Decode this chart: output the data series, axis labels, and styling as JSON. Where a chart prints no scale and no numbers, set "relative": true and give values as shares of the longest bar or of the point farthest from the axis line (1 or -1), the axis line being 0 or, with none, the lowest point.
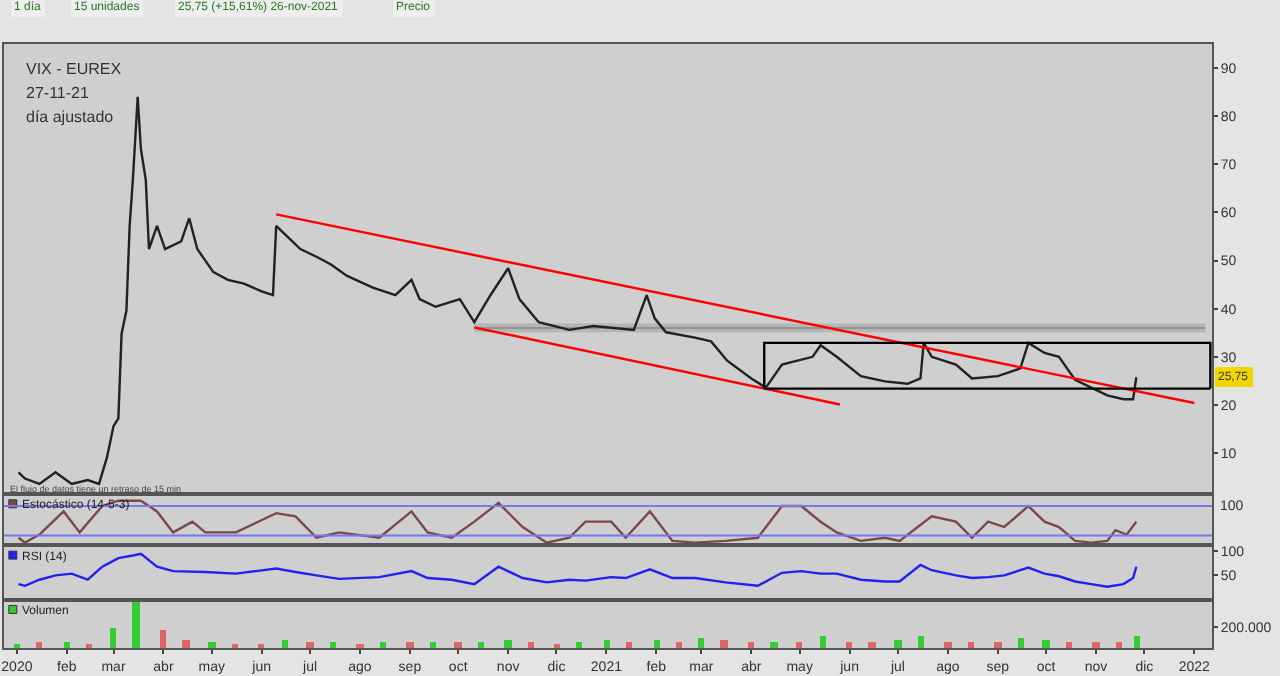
{
  "chart_data": [
    {
      "type": "line",
      "title": "VIX - EUREX",
      "subtitle": "27-11-21",
      "annotations": [
        "día ajustado",
        "El flujo de datos tiene un retraso de 15 min",
        "1 día",
        "15 unidades",
        "25,75 (+15,61%) 26-nov-2021",
        "Precio",
        {
          "text": "25,75",
          "y": 25.75
        }
      ],
      "xlim": [
        "2019-12-24",
        "2022-01-12"
      ],
      "ylim": [
        1.5,
        95
      ],
      "yticks": [
        10,
        20,
        30,
        40,
        50,
        60,
        70,
        80,
        90
      ],
      "tick_labels": "y",
      "grid": false,
      "legend": false,
      "marker": "none",
      "line_style": "solid",
      "series": [
        {
          "color": "#888888",
          "x": [
            "2020-10-11",
            "2022-01-08"
          ],
          "values": [
            36,
            36
          ],
          "lower": [
            35.1,
            35.1
          ],
          "upper": [
            36.9,
            36.9
          ]
        },
        {
          "color": "#222222",
          "x": [
            "2020-01-02",
            "2020-01-06",
            "2020-01-15",
            "2020-01-25",
            "2020-02-04",
            "2020-02-14",
            "2020-02-21",
            "2020-02-26",
            "2020-03-01",
            "2020-03-04",
            "2020-03-06",
            "2020-03-09",
            "2020-03-11",
            "2020-03-13",
            "2020-03-16",
            "2020-03-18",
            "2020-03-21",
            "2020-03-23",
            "2020-03-28",
            "2020-04-02",
            "2020-04-12",
            "2020-04-17",
            "2020-04-22",
            "2020-05-02",
            "2020-05-11",
            "2020-05-21",
            "2020-06-01",
            "2020-06-08",
            "2020-06-10",
            "2020-06-15",
            "2020-06-25",
            "2020-07-05",
            "2020-07-14",
            "2020-07-24",
            "2020-08-09",
            "2020-08-23",
            "2020-09-02",
            "2020-09-07",
            "2020-09-17",
            "2020-10-02",
            "2020-10-11",
            "2020-10-21",
            "2020-11-01",
            "2020-11-08",
            "2020-11-20",
            "2020-12-09",
            "2020-12-24",
            "2021-01-18",
            "2021-01-26",
            "2021-01-31",
            "2021-02-07",
            "2021-02-25",
            "2021-03-07",
            "2021-03-17",
            "2021-04-01",
            "2021-04-10",
            "2021-04-20",
            "2021-05-09",
            "2021-05-14",
            "2021-05-24",
            "2021-06-08",
            "2021-06-23",
            "2021-07-07",
            "2021-07-15",
            "2021-07-17",
            "2021-07-22",
            "2021-08-06",
            "2021-08-16",
            "2021-09-01",
            "2021-09-15",
            "2021-09-20",
            "2021-09-30",
            "2021-10-09",
            "2021-10-19",
            "2021-11-08",
            "2021-11-18",
            "2021-11-24",
            "2021-11-26"
          ],
          "values": [
            6.0,
            4.7,
            3.6,
            6.0,
            3.6,
            4.4,
            3.6,
            9.2,
            15.6,
            17.2,
            34.8,
            39.6,
            57.2,
            66.8,
            84,
            73.2,
            66.8,
            52.4,
            57.2,
            52.4,
            54,
            58.8,
            52.4,
            47.6,
            46,
            45.2,
            43.6,
            42.8,
            57.2,
            55.6,
            52.4,
            50.8,
            49.2,
            46.8,
            44.4,
            42.8,
            46,
            42,
            40.4,
            42,
            37.2,
            42.8,
            48.4,
            42,
            37.2,
            35.6,
            36.4,
            35.6,
            42.8,
            38,
            35.1,
            34,
            33.2,
            29.2,
            25.5,
            23.6,
            28.4,
            30,
            32.4,
            30,
            26,
            24.9,
            24.4,
            25.5,
            32.9,
            30,
            28.4,
            25.5,
            26,
            27.6,
            32.9,
            30.8,
            30,
            25.2,
            22,
            21.2,
            21.2,
            25.75
          ]
        },
        {
          "color": "#ff0000",
          "x": [
            "2020-06-10",
            "2022-01-01"
          ],
          "values": [
            59.6,
            20.4
          ]
        },
        {
          "color": "#ff0000",
          "x": [
            "2020-10-11",
            "2021-05-26"
          ],
          "values": [
            36.1,
            20.1
          ]
        },
        {
          "color": "#000000",
          "x": [
            "2021-04-09",
            "2021-04-09",
            "2022-01-11",
            "2022-01-11"
          ],
          "values": [
            23.4,
            32.9,
            32.9,
            23.4
          ]
        },
        {
          "color": "#000000",
          "x": [
            "2021-04-09",
            "2022-01-11"
          ],
          "values": [
            23.4,
            23.4
          ]
        }
      ]
    },
    {
      "type": "line",
      "relative": true,
      "annotations": [
        "100"
      ],
      "xlim": [
        "2019-12-24",
        "2022-01-12"
      ],
      "tick_labels": false,
      "grid": false,
      "legend": "top left",
      "marker": "none",
      "line_style": "solid",
      "ref_lines": [
        {
          "axis": "y",
          "value": 0.88,
          "color": "#7777ee"
        },
        {
          "axis": "y",
          "value": 0.22,
          "color": "#7777ee"
        }
      ],
      "series": [
        {
          "name": "Estocástico (14-5-3)",
          "color": "#7a4a4a",
          "x": [
            "2020-01-02",
            "2020-01-06",
            "2020-01-15",
            "2020-01-30",
            "2020-02-09",
            "2020-02-23",
            "2020-03-04",
            "2020-03-18",
            "2020-03-28",
            "2020-04-07",
            "2020-04-19",
            "2020-04-27",
            "2020-05-16",
            "2020-06-10",
            "2020-06-22",
            "2020-07-05",
            "2020-07-19",
            "2020-08-13",
            "2020-09-02",
            "2020-09-12",
            "2020-09-27",
            "2020-10-11",
            "2020-10-26",
            "2020-11-10",
            "2020-11-25",
            "2020-12-09",
            "2020-12-19",
            "2021-01-04",
            "2021-01-13",
            "2021-01-28",
            "2021-02-11",
            "2021-02-25",
            "2021-03-16",
            "2021-04-05",
            "2021-04-20",
            "2021-05-02",
            "2021-05-14",
            "2021-05-24",
            "2021-06-08",
            "2021-06-23",
            "2021-07-02",
            "2021-07-22",
            "2021-08-06",
            "2021-08-16",
            "2021-08-26",
            "2021-09-05",
            "2021-09-20",
            "2021-09-30",
            "2021-10-09",
            "2021-10-19",
            "2021-10-29",
            "2021-11-08",
            "2021-11-13",
            "2021-11-20",
            "2021-11-26"
          ],
          "values": [
            0.17,
            0.06,
            0.24,
            0.76,
            0.29,
            0.88,
            1,
            1,
            0.76,
            0.29,
            0.53,
            0.29,
            0.29,
            0.72,
            0.65,
            0.17,
            0.29,
            0.17,
            0.76,
            0.29,
            0.17,
            0.53,
            0.95,
            0.41,
            0.06,
            0.17,
            0.53,
            0.53,
            0.17,
            0.76,
            0.1,
            0.06,
            0.1,
            0.17,
            0.88,
            0.88,
            0.53,
            0.29,
            0.1,
            0.17,
            0.1,
            0.65,
            0.53,
            0.17,
            0.53,
            0.41,
            0.88,
            0.53,
            0.41,
            0.1,
            0.06,
            0.1,
            0.34,
            0.24,
            0.53
          ]
        }
      ]
    },
    {
      "type": "line",
      "xlim": [
        "2019-12-24",
        "2022-01-12"
      ],
      "ylim": [
        0,
        112
      ],
      "yticks": [
        50,
        100
      ],
      "tick_labels": "y",
      "grid": false,
      "legend": "top left",
      "marker": "none",
      "line_style": "solid",
      "series": [
        {
          "name": "RSI (14)",
          "color": "#2222ee",
          "x": [
            "2020-01-02",
            "2020-01-06",
            "2020-01-15",
            "2020-01-25",
            "2020-02-04",
            "2020-02-14",
            "2020-02-23",
            "2020-03-04",
            "2020-03-13",
            "2020-03-18",
            "2020-03-28",
            "2020-04-07",
            "2020-04-27",
            "2020-05-16",
            "2020-06-10",
            "2020-06-22",
            "2020-07-05",
            "2020-07-19",
            "2020-08-13",
            "2020-09-02",
            "2020-09-12",
            "2020-09-27",
            "2020-10-11",
            "2020-10-26",
            "2020-11-10",
            "2020-11-25",
            "2020-12-09",
            "2020-12-19",
            "2021-01-04",
            "2021-01-13",
            "2021-01-28",
            "2021-02-11",
            "2021-02-25",
            "2021-03-16",
            "2021-04-05",
            "2021-04-20",
            "2021-05-02",
            "2021-05-14",
            "2021-05-24",
            "2021-06-08",
            "2021-06-23",
            "2021-07-02",
            "2021-07-15",
            "2021-07-22",
            "2021-08-06",
            "2021-08-16",
            "2021-08-26",
            "2021-09-05",
            "2021-09-20",
            "2021-09-30",
            "2021-10-09",
            "2021-10-19",
            "2021-10-29",
            "2021-11-08",
            "2021-11-18",
            "2021-11-24",
            "2021-11-26"
          ],
          "values": [
            32.1,
            28.6,
            41.1,
            50,
            53.6,
            41.1,
            67.9,
            85.7,
            91.1,
            94.6,
            67.9,
            58.9,
            57.1,
            53.6,
            64.3,
            57.1,
            50,
            42.9,
            46.4,
            58.9,
            44.6,
            41.1,
            32.1,
            67.9,
            44.6,
            35.7,
            41.1,
            39.3,
            46.4,
            44.6,
            62.5,
            44.6,
            44.6,
            35.7,
            28.6,
            55.4,
            58.9,
            53.6,
            53.6,
            41.1,
            37.5,
            37.5,
            71.4,
            60.7,
            50,
            44.6,
            46.4,
            50,
            66.1,
            53.6,
            48.2,
            37.5,
            32.1,
            26.8,
            32.1,
            44.6,
            67.9
          ]
        }
      ]
    },
    {
      "type": "bar",
      "xlim": [
        "2019-12-24",
        "2022-01-12"
      ],
      "ylim": [
        0,
        470000
      ],
      "yticks": [
        {
          "value": 200000,
          "label": "200.000"
        }
      ],
      "xticks": [
        {
          "value": "2020-01-01",
          "label": "2020"
        },
        {
          "value": "2020-02-01",
          "label": "feb"
        },
        {
          "value": "2020-03-01",
          "label": "mar"
        },
        {
          "value": "2020-04-01",
          "label": "abr"
        },
        {
          "value": "2020-05-01",
          "label": "may"
        },
        {
          "value": "2020-06-01",
          "label": "jun"
        },
        {
          "value": "2020-07-01",
          "label": "jul"
        },
        {
          "value": "2020-08-01",
          "label": "ago"
        },
        {
          "value": "2020-09-01",
          "label": "sep"
        },
        {
          "value": "2020-10-01",
          "label": "oct"
        },
        {
          "value": "2020-11-01",
          "label": "nov"
        },
        {
          "value": "2020-12-01",
          "label": "dic"
        },
        {
          "value": "2021-01-01",
          "label": "2021"
        },
        {
          "value": "2021-02-01",
          "label": "feb"
        },
        {
          "value": "2021-03-01",
          "label": "mar"
        },
        {
          "value": "2021-04-01",
          "label": "abr"
        },
        {
          "value": "2021-05-01",
          "label": "may"
        },
        {
          "value": "2021-06-01",
          "label": "jun"
        },
        {
          "value": "2021-07-01",
          "label": "jul"
        },
        {
          "value": "2021-08-01",
          "label": "ago"
        },
        {
          "value": "2021-09-01",
          "label": "sep"
        },
        {
          "value": "2021-10-01",
          "label": "oct"
        },
        {
          "value": "2021-11-01",
          "label": "nov"
        },
        {
          "value": "2021-12-01",
          "label": "dic"
        },
        {
          "value": "2022-01-01",
          "label": "2022"
        }
      ],
      "grid": false,
      "legend": "top left",
      "series": [
        {
          "name": "Volumen",
          "x": [
            "2020-01-01",
            "2020-01-15",
            "2020-02-01",
            "2020-02-15",
            "2020-03-01",
            "2020-03-15",
            "2020-04-01",
            "2020-04-15",
            "2020-05-01",
            "2020-05-15",
            "2020-06-01",
            "2020-06-15",
            "2020-07-01",
            "2020-07-15",
            "2020-08-01",
            "2020-08-15",
            "2020-09-01",
            "2020-09-15",
            "2020-10-01",
            "2020-10-15",
            "2020-11-01",
            "2020-11-15",
            "2020-12-01",
            "2020-12-15",
            "2021-01-01",
            "2021-01-15",
            "2021-02-01",
            "2021-02-15",
            "2021-03-01",
            "2021-03-15",
            "2021-04-01",
            "2021-04-15",
            "2021-05-01",
            "2021-05-15",
            "2021-06-01",
            "2021-06-15",
            "2021-07-01",
            "2021-07-15",
            "2021-08-01",
            "2021-08-15",
            "2021-09-01",
            "2021-09-15",
            "2021-10-01",
            "2021-10-15",
            "2021-11-01",
            "2021-11-15",
            "2021-11-26"
          ],
          "values": [
            40000,
            60000,
            70000,
            50000,
            200000,
            450000,
            180000,
            90000,
            60000,
            50000,
            50000,
            80000,
            60000,
            60000,
            50000,
            60000,
            60000,
            70000,
            60000,
            60000,
            90000,
            60000,
            50000,
            60000,
            80000,
            60000,
            90000,
            70000,
            110000,
            80000,
            60000,
            60000,
            70000,
            120000,
            60000,
            60000,
            80000,
            120000,
            70000,
            60000,
            60000,
            100000,
            90000,
            60000,
            60000,
            60000,
            120000
          ],
          "colors": [
            "#33cc33",
            "#e06666",
            "#33cc33",
            "#e06666",
            "#33cc33",
            "#33cc33",
            "#e06666",
            "#e06666",
            "#33cc33",
            "#e06666",
            "#e06666",
            "#33cc33",
            "#e06666",
            "#33cc33",
            "#e06666",
            "#33cc33",
            "#e06666",
            "#33cc33",
            "#e06666",
            "#33cc33",
            "#33cc33",
            "#e06666",
            "#e06666",
            "#33cc33",
            "#33cc33",
            "#e06666",
            "#33cc33",
            "#e06666",
            "#33cc33",
            "#e06666",
            "#e06666",
            "#33cc33",
            "#e06666",
            "#33cc33",
            "#e06666",
            "#e06666",
            "#33cc33",
            "#33cc33",
            "#e06666",
            "#e06666",
            "#e06666",
            "#33cc33",
            "#33cc33",
            "#e06666",
            "#e06666",
            "#e06666",
            "#33cc33"
          ]
        }
      ]
    }
  ]
}
